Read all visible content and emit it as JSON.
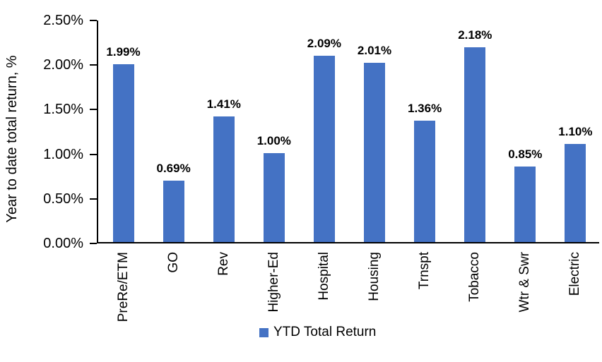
{
  "chart_data": {
    "type": "bar",
    "title": "",
    "ylabel": "Year to date total return, %",
    "xlabel": "",
    "categories": [
      "PreRe/ETM",
      "GO",
      "Rev",
      "Higher-Ed",
      "Hospital",
      "Housing",
      "Trnspt",
      "Tobacco",
      "Wtr & Swr",
      "Electric"
    ],
    "series": [
      {
        "name": "YTD Total Return",
        "color": "#4472C4",
        "values": [
          1.99,
          0.69,
          1.41,
          1.0,
          2.09,
          2.01,
          1.36,
          2.18,
          0.85,
          1.1
        ],
        "data_labels": [
          "1.99%",
          "0.69%",
          "1.41%",
          "1.00%",
          "2.09%",
          "2.01%",
          "1.36%",
          "2.18%",
          "0.85%",
          "1.10%"
        ]
      }
    ],
    "ylim": [
      0,
      2.5
    ],
    "ytick_values": [
      0,
      0.5,
      1,
      1.5,
      2,
      2.5
    ],
    "ytick_labels": [
      "0.00%",
      "0.50%",
      "1.00%",
      "1.50%",
      "2.00%",
      "2.50%"
    ],
    "grid": false,
    "legend_position": "bottom",
    "axis_color": "#000000",
    "text_color": "#000000",
    "background": "#FFFFFF"
  }
}
